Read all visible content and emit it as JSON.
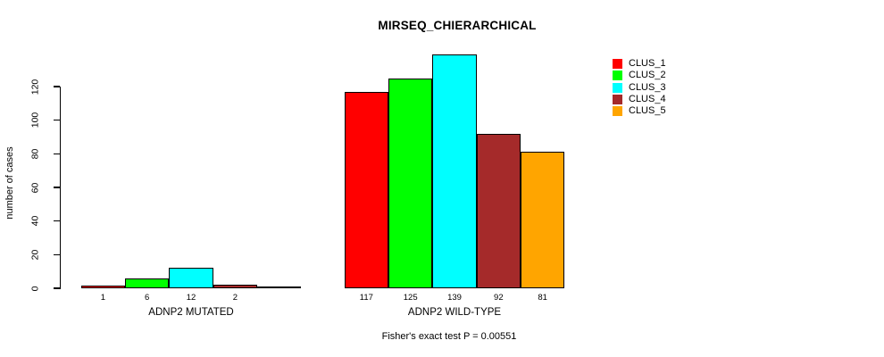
{
  "chart_data": {
    "type": "bar",
    "title": "MIRSEQ_CHIERARCHICAL",
    "ylabel": "number of cases",
    "ylim": [
      0,
      120
    ],
    "yticks": [
      0,
      20,
      40,
      60,
      80,
      100,
      120
    ],
    "grid": false,
    "legend_position": "top-right",
    "series": [
      {
        "name": "CLUS_1",
        "color": "#FF0000",
        "values": [
          1,
          117
        ]
      },
      {
        "name": "CLUS_2",
        "color": "#00FF00",
        "values": [
          6,
          125
        ]
      },
      {
        "name": "CLUS_3",
        "color": "#00FFFF",
        "values": [
          12,
          139
        ]
      },
      {
        "name": "CLUS_4",
        "color": "#A52A2A",
        "values": [
          2,
          92
        ]
      },
      {
        "name": "CLUS_5",
        "color": "#FFA500",
        "values": [
          0,
          81
        ]
      }
    ],
    "groups": [
      {
        "label": "ADNP2 MUTATED",
        "value_labels": [
          "1",
          "6",
          "12",
          "2",
          ""
        ]
      },
      {
        "label": "ADNP2 WILD-TYPE",
        "value_labels": [
          "117",
          "125",
          "139",
          "92",
          "81"
        ]
      }
    ],
    "footnote": "Fisher's exact test P = 0.00551"
  }
}
